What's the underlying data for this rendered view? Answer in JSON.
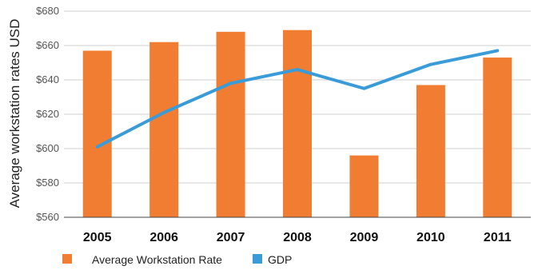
{
  "chart_data": {
    "type": "bar",
    "title": "",
    "xlabel": "",
    "ylabel": "Average workstation rates USD",
    "categories": [
      "2005",
      "2006",
      "2007",
      "2008",
      "2009",
      "2010",
      "2011"
    ],
    "ylim": [
      560,
      680
    ],
    "yticks": [
      "$560",
      "$580",
      "$600",
      "$620",
      "$640",
      "$660",
      "$680"
    ],
    "grid": true,
    "legend_position": "bottom",
    "series": [
      {
        "name": "Average Workstation Rate",
        "type": "bar",
        "color": "#F07D32",
        "values": [
          657,
          662,
          668,
          669,
          596,
          637,
          653
        ]
      },
      {
        "name": "GDP",
        "type": "line",
        "color": "#3A9BD9",
        "values": [
          601,
          621,
          638,
          646,
          635,
          649,
          657
        ]
      }
    ]
  }
}
